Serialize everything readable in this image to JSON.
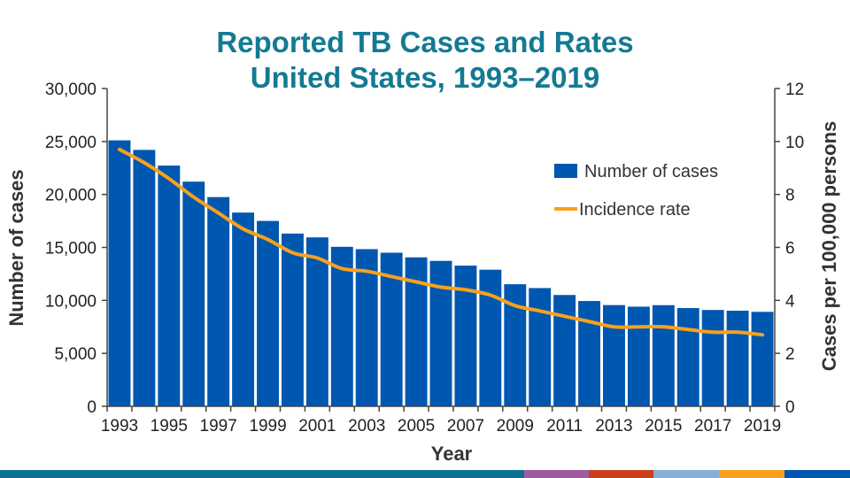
{
  "chart_data": {
    "type": "bar",
    "title": "Reported TB Cases and Rates",
    "subtitle": "United States, 1993–2019",
    "xlabel": "Year",
    "ylabel": "Number of cases",
    "y2label": "Cases per 100,000 persons",
    "ylim": [
      0,
      30000
    ],
    "y2lim": [
      0,
      12
    ],
    "yticks": [
      "0",
      "5,000",
      "10,000",
      "15,000",
      "20,000",
      "25,000",
      "30,000"
    ],
    "y2ticks": [
      "0",
      "2",
      "4",
      "6",
      "8",
      "10",
      "12"
    ],
    "categories": [
      1993,
      1994,
      1995,
      1996,
      1997,
      1998,
      1999,
      2000,
      2001,
      2002,
      2003,
      2004,
      2005,
      2006,
      2007,
      2008,
      2009,
      2010,
      2011,
      2012,
      2013,
      2014,
      2015,
      2016,
      2017,
      2018,
      2019
    ],
    "xticklabels": [
      "1993",
      "1995",
      "1997",
      "1999",
      "2001",
      "2003",
      "2005",
      "2007",
      "2009",
      "2011",
      "2013",
      "2015",
      "2017",
      "2019"
    ],
    "legend_position": "right",
    "series": [
      {
        "name": "Number of cases",
        "type": "bar",
        "axis": "left",
        "color": "#0057b0",
        "values": [
          25107,
          24205,
          22727,
          21210,
          19751,
          18287,
          17500,
          16308,
          15945,
          15055,
          14836,
          14499,
          14063,
          13728,
          13282,
          12895,
          11523,
          11161,
          10510,
          9941,
          9556,
          9406,
          9548,
          9272,
          9093,
          9025,
          8916
        ]
      },
      {
        "name": "Incidence rate",
        "type": "line",
        "axis": "right",
        "color": "#f9a11b",
        "values": [
          9.7,
          9.2,
          8.6,
          7.9,
          7.3,
          6.7,
          6.3,
          5.8,
          5.6,
          5.2,
          5.1,
          4.9,
          4.7,
          4.5,
          4.4,
          4.2,
          3.8,
          3.6,
          3.4,
          3.2,
          3.0,
          3.0,
          3.0,
          2.9,
          2.8,
          2.8,
          2.7
        ]
      }
    ]
  },
  "footer_stripe_colors": [
    "#0b7191",
    "#a05aa0",
    "#cc3f1c",
    "#85afd9",
    "#f9a11b",
    "#0057b0"
  ]
}
